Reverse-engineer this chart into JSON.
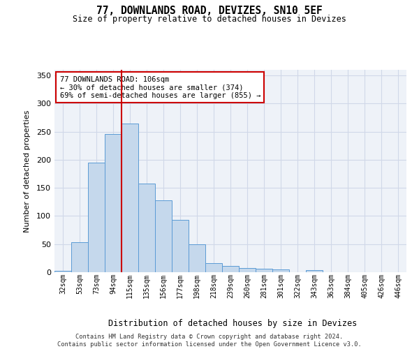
{
  "title_line1": "77, DOWNLANDS ROAD, DEVIZES, SN10 5EF",
  "title_line2": "Size of property relative to detached houses in Devizes",
  "xlabel": "Distribution of detached houses by size in Devizes",
  "ylabel": "Number of detached properties",
  "categories": [
    "32sqm",
    "53sqm",
    "73sqm",
    "94sqm",
    "115sqm",
    "135sqm",
    "156sqm",
    "177sqm",
    "198sqm",
    "218sqm",
    "239sqm",
    "260sqm",
    "281sqm",
    "301sqm",
    "322sqm",
    "343sqm",
    "363sqm",
    "384sqm",
    "405sqm",
    "426sqm",
    "446sqm"
  ],
  "values": [
    3,
    53,
    195,
    246,
    265,
    158,
    128,
    93,
    50,
    16,
    11,
    8,
    6,
    5,
    0,
    4,
    0,
    0,
    0,
    0,
    0
  ],
  "bar_color": "#c5d8ec",
  "bar_edge_color": "#5b9bd5",
  "grid_color": "#d0d8e8",
  "background_color": "#eef2f8",
  "vline_x_index": 3.5,
  "vline_color": "#cc0000",
  "annotation_text": "77 DOWNLANDS ROAD: 106sqm\n← 30% of detached houses are smaller (374)\n69% of semi-detached houses are larger (855) →",
  "annotation_box_color": "#ffffff",
  "annotation_box_edge": "#cc0000",
  "ylim": [
    0,
    360
  ],
  "yticks": [
    0,
    50,
    100,
    150,
    200,
    250,
    300,
    350
  ],
  "footer_line1": "Contains HM Land Registry data © Crown copyright and database right 2024.",
  "footer_line2": "Contains public sector information licensed under the Open Government Licence v3.0."
}
